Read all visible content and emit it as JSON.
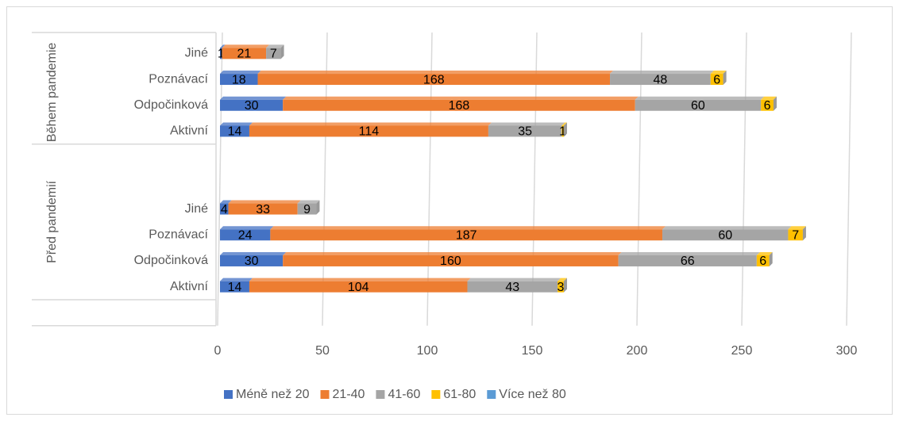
{
  "chart_data": {
    "type": "bar3d_stacked_horizontal",
    "groups": [
      {
        "name": "Během pandemie",
        "categories": [
          "Jiné",
          "Poznávací",
          "Odpočinková",
          "Aktivní"
        ]
      },
      {
        "name": "Před pandemií",
        "categories": [
          null,
          null,
          "Jiné",
          "Poznávací",
          "Odpočinková",
          "Aktivní"
        ]
      },
      {
        "name": null,
        "categories": [
          null
        ]
      }
    ],
    "series": [
      {
        "name": "Méně než 20",
        "color": "#4472c4",
        "values": [
          1,
          18,
          30,
          14,
          null,
          null,
          4,
          24,
          30,
          14,
          null
        ]
      },
      {
        "name": "21-40",
        "color": "#ed7d31",
        "values": [
          21,
          168,
          168,
          114,
          null,
          null,
          33,
          187,
          160,
          104,
          null
        ]
      },
      {
        "name": "41-60",
        "color": "#a5a5a5",
        "values": [
          7,
          48,
          60,
          35,
          null,
          null,
          9,
          60,
          66,
          43,
          null
        ]
      },
      {
        "name": "61-80",
        "color": "#ffc000",
        "values": [
          null,
          6,
          6,
          1,
          null,
          null,
          null,
          7,
          6,
          3,
          null
        ]
      },
      {
        "name": "Více než 80",
        "color": "#5b9bd5",
        "values": [
          null,
          null,
          null,
          null,
          null,
          null,
          null,
          null,
          null,
          null,
          null
        ]
      }
    ],
    "xlim": [
      0,
      300
    ],
    "xticks": [
      0,
      50,
      100,
      150,
      200,
      250,
      300
    ],
    "grid": true,
    "legend": "bottom"
  }
}
